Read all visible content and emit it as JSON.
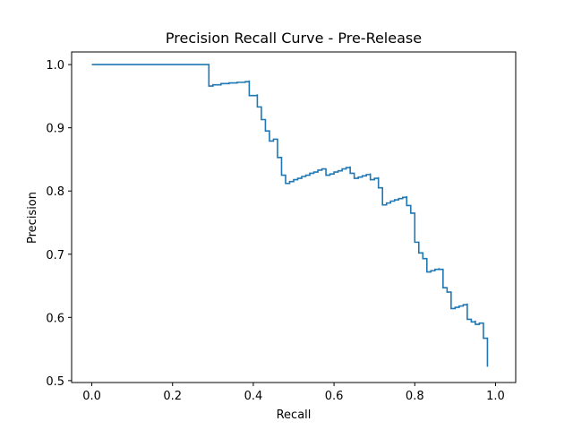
{
  "chart_data": {
    "type": "line",
    "title": "Precision Recall Curve - Pre-Release",
    "xlabel": "Recall",
    "ylabel": "Precision",
    "xlim": [
      -0.05,
      1.05
    ],
    "ylim": [
      0.497,
      1.02
    ],
    "xticks": [
      0.0,
      0.2,
      0.4,
      0.6,
      0.8,
      1.0
    ],
    "xtick_labels": [
      "0.0",
      "0.2",
      "0.4",
      "0.6",
      "0.8",
      "1.0"
    ],
    "yticks": [
      0.5,
      0.6,
      0.7,
      0.8,
      0.9,
      1.0
    ],
    "ytick_labels": [
      "0.5",
      "0.6",
      "0.7",
      "0.8",
      "0.9",
      "1.0"
    ],
    "grid": false,
    "series": [
      {
        "color": "#1f77b4",
        "step": true,
        "points": [
          [
            0.0,
            1.0
          ],
          [
            0.29,
            1.0
          ],
          [
            0.29,
            0.966
          ],
          [
            0.3,
            0.968
          ],
          [
            0.32,
            0.97
          ],
          [
            0.34,
            0.971
          ],
          [
            0.36,
            0.972
          ],
          [
            0.38,
            0.973
          ],
          [
            0.39,
            0.975
          ],
          [
            0.39,
            0.951
          ],
          [
            0.41,
            0.953
          ],
          [
            0.41,
            0.933
          ],
          [
            0.42,
            0.933
          ],
          [
            0.42,
            0.913
          ],
          [
            0.43,
            0.913
          ],
          [
            0.43,
            0.895
          ],
          [
            0.44,
            0.895
          ],
          [
            0.44,
            0.879
          ],
          [
            0.45,
            0.882
          ],
          [
            0.46,
            0.883
          ],
          [
            0.46,
            0.853
          ],
          [
            0.47,
            0.853
          ],
          [
            0.47,
            0.825
          ],
          [
            0.48,
            0.825
          ],
          [
            0.48,
            0.812
          ],
          [
            0.49,
            0.815
          ],
          [
            0.5,
            0.818
          ],
          [
            0.51,
            0.82
          ],
          [
            0.52,
            0.823
          ],
          [
            0.53,
            0.825
          ],
          [
            0.54,
            0.828
          ],
          [
            0.55,
            0.83
          ],
          [
            0.56,
            0.833
          ],
          [
            0.57,
            0.835
          ],
          [
            0.58,
            0.836
          ],
          [
            0.58,
            0.825
          ],
          [
            0.59,
            0.827
          ],
          [
            0.6,
            0.83
          ],
          [
            0.61,
            0.832
          ],
          [
            0.62,
            0.835
          ],
          [
            0.63,
            0.837
          ],
          [
            0.64,
            0.839
          ],
          [
            0.64,
            0.828
          ],
          [
            0.65,
            0.828
          ],
          [
            0.65,
            0.82
          ],
          [
            0.66,
            0.822
          ],
          [
            0.67,
            0.824
          ],
          [
            0.68,
            0.826
          ],
          [
            0.69,
            0.828
          ],
          [
            0.69,
            0.818
          ],
          [
            0.7,
            0.82
          ],
          [
            0.71,
            0.822
          ],
          [
            0.71,
            0.805
          ],
          [
            0.72,
            0.805
          ],
          [
            0.72,
            0.778
          ],
          [
            0.73,
            0.781
          ],
          [
            0.74,
            0.784
          ],
          [
            0.75,
            0.786
          ],
          [
            0.76,
            0.788
          ],
          [
            0.77,
            0.79
          ],
          [
            0.78,
            0.792
          ],
          [
            0.78,
            0.777
          ],
          [
            0.79,
            0.777
          ],
          [
            0.79,
            0.765
          ],
          [
            0.8,
            0.765
          ],
          [
            0.8,
            0.719
          ],
          [
            0.81,
            0.719
          ],
          [
            0.81,
            0.702
          ],
          [
            0.82,
            0.702
          ],
          [
            0.82,
            0.693
          ],
          [
            0.83,
            0.693
          ],
          [
            0.83,
            0.672
          ],
          [
            0.84,
            0.674
          ],
          [
            0.85,
            0.676
          ],
          [
            0.86,
            0.678
          ],
          [
            0.86,
            0.676
          ],
          [
            0.87,
            0.676
          ],
          [
            0.87,
            0.647
          ],
          [
            0.88,
            0.647
          ],
          [
            0.88,
            0.64
          ],
          [
            0.89,
            0.64
          ],
          [
            0.89,
            0.614
          ],
          [
            0.9,
            0.616
          ],
          [
            0.91,
            0.618
          ],
          [
            0.92,
            0.62
          ],
          [
            0.93,
            0.622
          ],
          [
            0.93,
            0.597
          ],
          [
            0.94,
            0.597
          ],
          [
            0.94,
            0.593
          ],
          [
            0.95,
            0.595
          ],
          [
            0.95,
            0.589
          ],
          [
            0.96,
            0.591
          ],
          [
            0.97,
            0.591
          ],
          [
            0.97,
            0.567
          ],
          [
            0.98,
            0.567
          ],
          [
            0.98,
            0.522
          ]
        ]
      }
    ]
  }
}
